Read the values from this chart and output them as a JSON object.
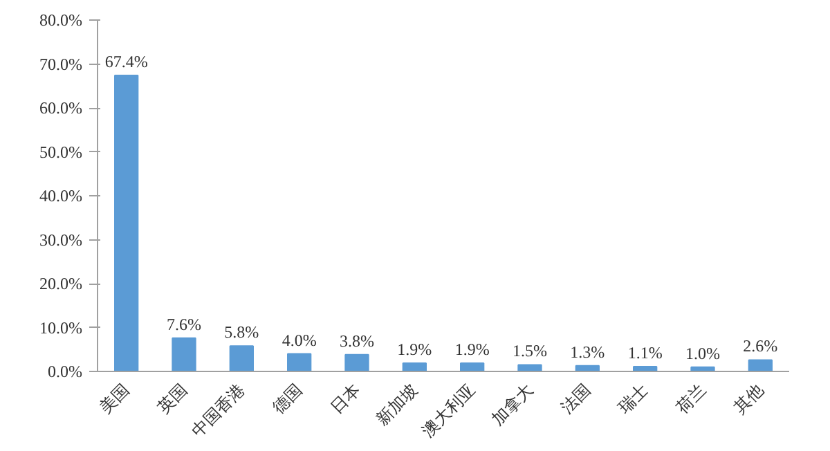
{
  "chart_data": {
    "type": "bar",
    "categories": [
      "美国",
      "英国",
      "中国香港",
      "德国",
      "日本",
      "新加坡",
      "澳大利亚",
      "加拿大",
      "法国",
      "瑞士",
      "荷兰",
      "其他"
    ],
    "values": [
      67.4,
      7.6,
      5.8,
      4.0,
      3.8,
      1.9,
      1.9,
      1.5,
      1.3,
      1.1,
      1.0,
      2.6
    ],
    "value_labels": [
      "67.4%",
      "7.6%",
      "5.8%",
      "4.0%",
      "3.8%",
      "1.9%",
      "1.9%",
      "1.5%",
      "1.3%",
      "1.1%",
      "1.0%",
      "2.6%"
    ],
    "color": "#5b9bd5",
    "ylim": [
      0,
      80
    ],
    "yticks": [
      {
        "value": 0,
        "label": "0.0%"
      },
      {
        "value": 10,
        "label": "10.0%"
      },
      {
        "value": 20,
        "label": "20.0%"
      },
      {
        "value": 30,
        "label": "30.0%"
      },
      {
        "value": 40,
        "label": "40.0%"
      },
      {
        "value": 50,
        "label": "50.0%"
      },
      {
        "value": 60,
        "label": "60.0%"
      },
      {
        "value": 70,
        "label": "70.0%"
      },
      {
        "value": 80,
        "label": "80.0%"
      }
    ],
    "grid": false
  }
}
